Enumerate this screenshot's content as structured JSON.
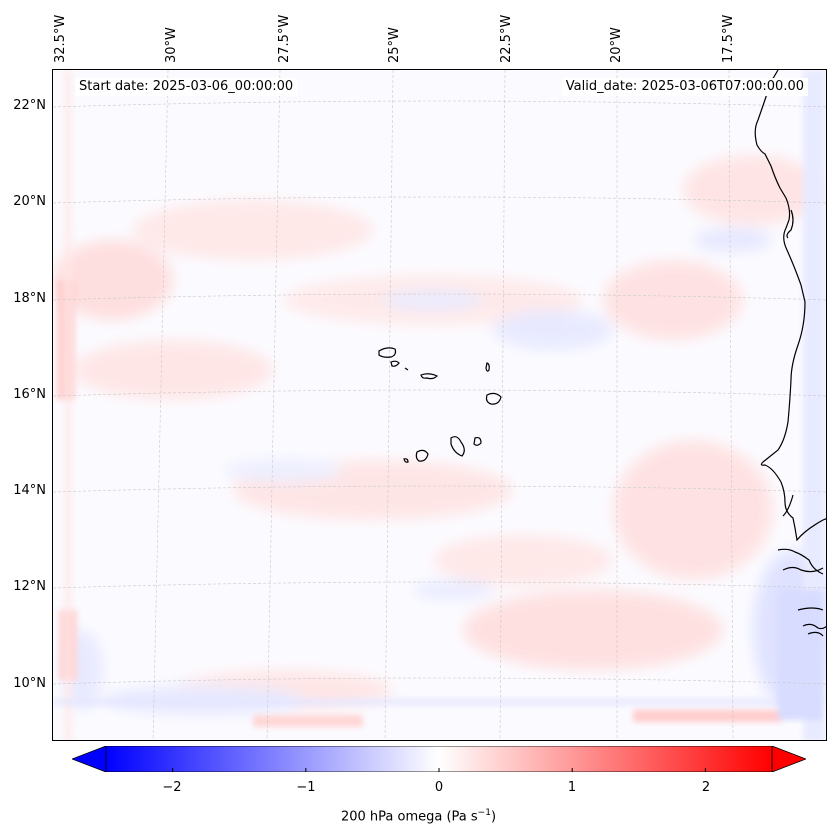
{
  "map": {
    "start_date": "Start date: 2025-03-06_00:00:00",
    "valid_date": "Valid_date: 2025-03-06T07:00:00.00",
    "lon_labels": [
      "32.5°W",
      "30°W",
      "27.5°W",
      "25°W",
      "22.5°W",
      "20°W",
      "17.5°W"
    ],
    "lat_labels": [
      "22°N",
      "20°N",
      "18°N",
      "16°N",
      "14°N",
      "12°N",
      "10°N"
    ],
    "variable": "200 hPa omega",
    "colors": {
      "negative": "#0000ff",
      "neutral": "#ffffff",
      "positive": "#ff0000",
      "coast": "#000000"
    }
  },
  "colorbar": {
    "ticks": [
      "−2",
      "−1",
      "0",
      "1",
      "2"
    ],
    "tick_values": [
      -2,
      -1,
      0,
      1,
      2
    ],
    "range": [
      -2.5,
      2.5
    ],
    "label_prefix": "200 hPa omega (Pa s",
    "label_exp": "−1",
    "label_suffix": ")"
  }
}
